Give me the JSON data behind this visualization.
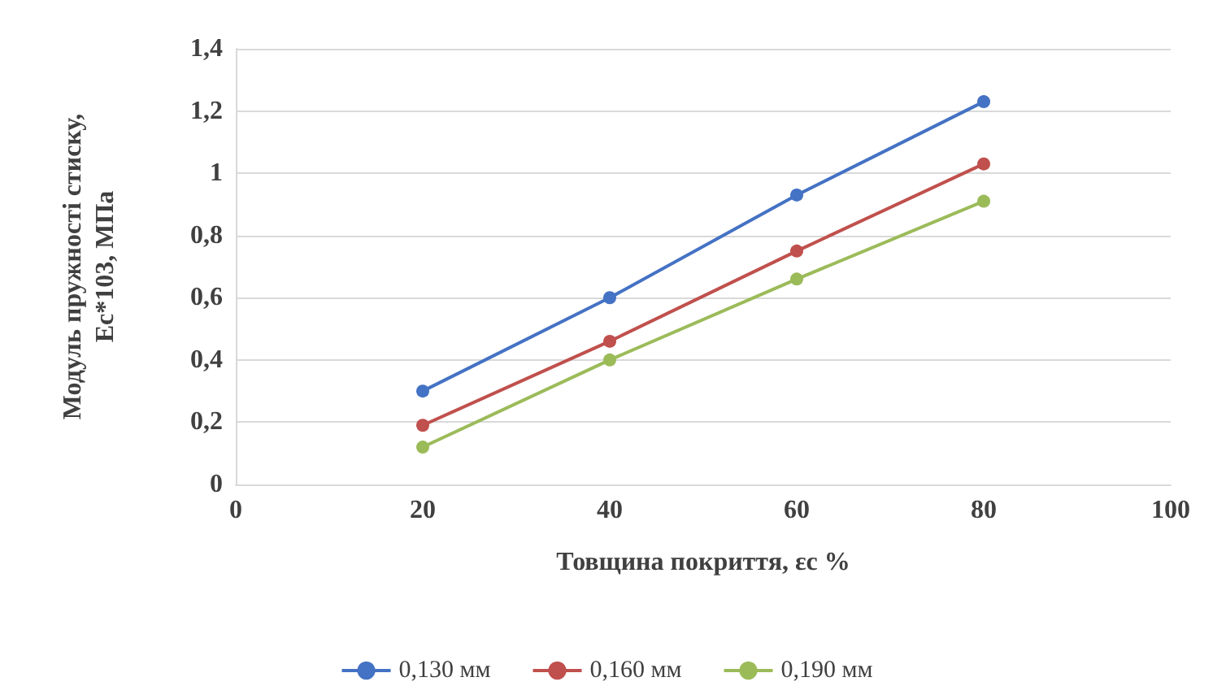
{
  "chart_data": {
    "type": "line",
    "xlabel": "Товщина покриття, εc %",
    "ylabel": "Модуль пружності стиску,\nEc*103, МПа",
    "x": [
      20,
      40,
      60,
      80
    ],
    "series": [
      {
        "name": "0,130 мм",
        "color": "#4472c4",
        "values": [
          0.3,
          0.6,
          0.93,
          1.23
        ]
      },
      {
        "name": "0,160 мм",
        "color": "#c0504d",
        "values": [
          0.19,
          0.46,
          0.75,
          1.03
        ]
      },
      {
        "name": "0,190 мм",
        "color": "#9bbb59",
        "values": [
          0.12,
          0.4,
          0.66,
          0.91
        ]
      }
    ],
    "xlim": [
      0,
      100
    ],
    "xticks": [
      0,
      20,
      40,
      60,
      80,
      100
    ],
    "ylim": [
      0,
      1.4
    ],
    "yticks": [
      0,
      {
        "value": 0.2,
        "label": "0,2"
      },
      {
        "value": 0.4,
        "label": "0,4"
      },
      {
        "value": 0.6,
        "label": "0,6"
      },
      {
        "value": 0.8,
        "label": "0,8"
      },
      1,
      {
        "value": 1.2,
        "label": "1,2"
      },
      {
        "value": 1.4,
        "label": "1,4"
      }
    ],
    "grid": "y",
    "legend": "bottom",
    "marker": "circle",
    "line_style": "solid"
  }
}
